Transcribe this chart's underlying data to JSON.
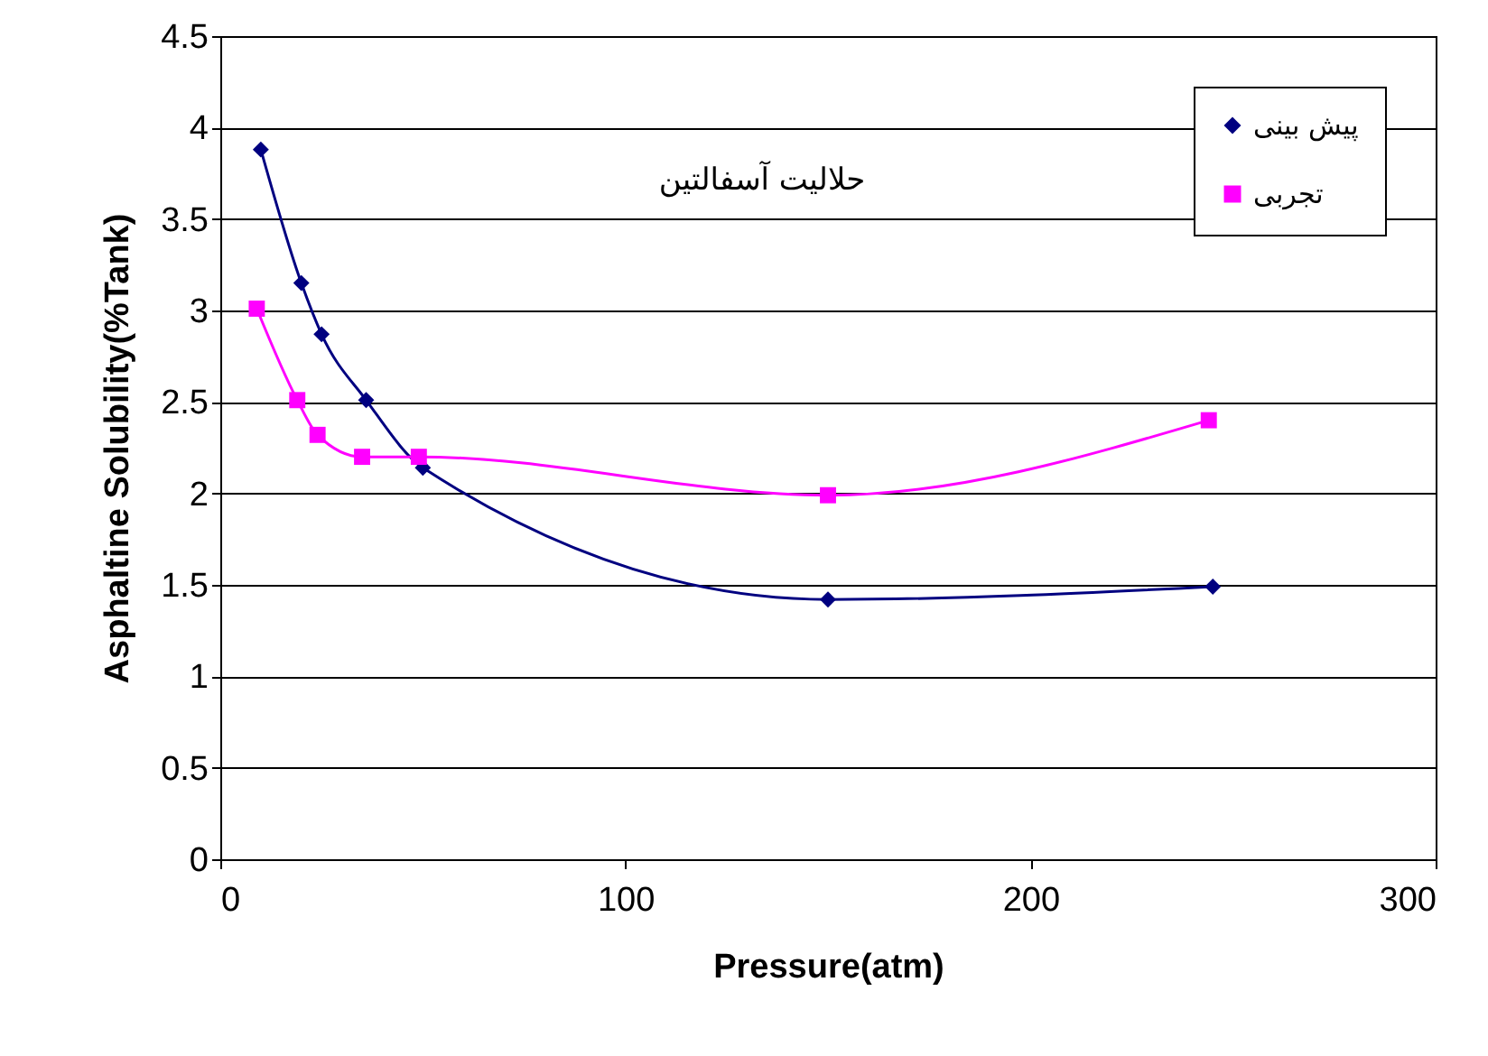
{
  "chart_data": {
    "type": "line",
    "xlabel": "Pressure(atm)",
    "ylabel": "Asphaltine Solubility(%Tank)",
    "annotations": [
      "حلاليت آسفالتين"
    ],
    "xlim": [
      0,
      300
    ],
    "xticks": [
      0,
      100,
      200,
      300
    ],
    "ylim": [
      0,
      4.5
    ],
    "yticks": [
      0,
      0.5,
      1,
      1.5,
      2,
      2.5,
      3,
      3.5,
      4,
      4.5
    ],
    "grid": "y",
    "legend": "top right",
    "line_style": "solid",
    "series": [
      {
        "name": "پیش بینی",
        "color": "#000080",
        "marker": "diamond",
        "x": [
          10,
          20,
          25,
          36,
          50,
          150,
          245
        ],
        "values": [
          3.88,
          3.15,
          2.87,
          2.51,
          2.14,
          1.42,
          1.49
        ]
      },
      {
        "name": "تجربی",
        "color": "#ff00ff",
        "marker": "square",
        "x": [
          9,
          19,
          24,
          35,
          49,
          150,
          244
        ],
        "values": [
          3.01,
          2.51,
          2.32,
          2.2,
          2.2,
          1.99,
          2.4
        ]
      }
    ]
  }
}
